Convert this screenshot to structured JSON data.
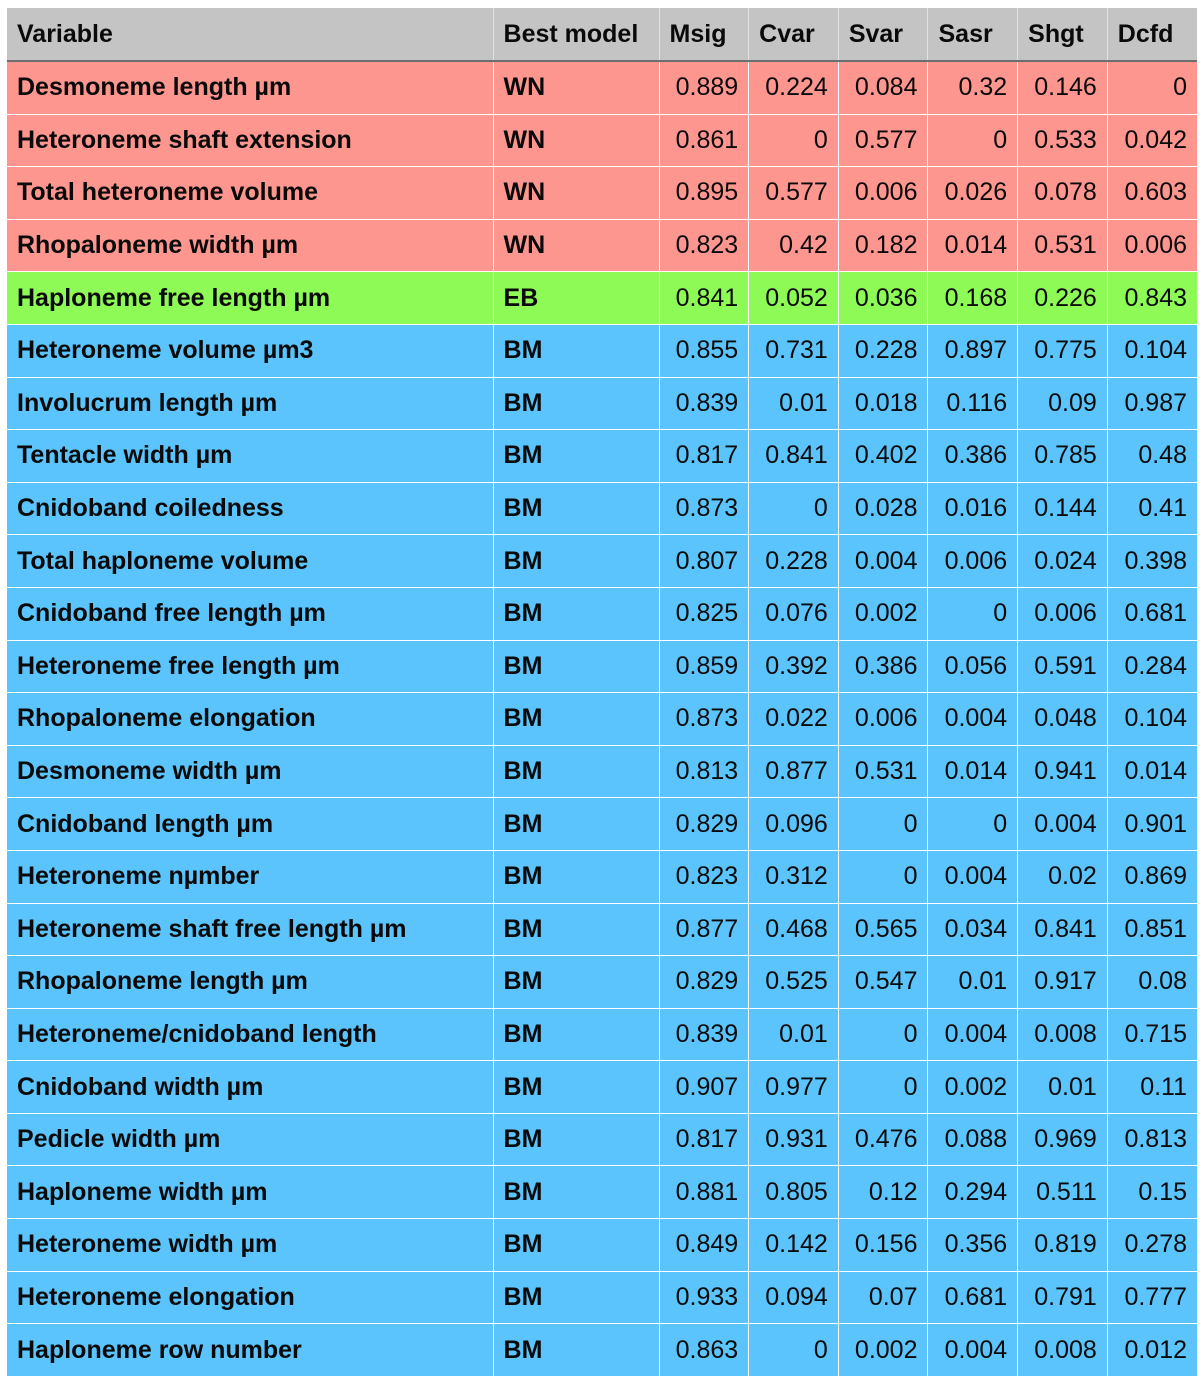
{
  "table": {
    "headers": [
      "Variable",
      "Best model",
      "Msig",
      "Cvar",
      "Svar",
      "Sasr",
      "Shgt",
      "Dcfd"
    ],
    "group_colors": {
      "WN": "#fe9690",
      "EB": "#8efa56",
      "BM": "#5bc4fc"
    },
    "rows": [
      {
        "variable": "Desmoneme length µm",
        "model": "WN",
        "values": [
          "0.889",
          "0.224",
          "0.084",
          "0.32",
          "0.146",
          "0"
        ]
      },
      {
        "variable": "Heteroneme shaft extension",
        "model": "WN",
        "values": [
          "0.861",
          "0",
          "0.577",
          "0",
          "0.533",
          "0.042"
        ]
      },
      {
        "variable": "Total heteroneme volume",
        "model": "WN",
        "values": [
          "0.895",
          "0.577",
          "0.006",
          "0.026",
          "0.078",
          "0.603"
        ]
      },
      {
        "variable": "Rhopaloneme width µm",
        "model": "WN",
        "values": [
          "0.823",
          "0.42",
          "0.182",
          "0.014",
          "0.531",
          "0.006"
        ]
      },
      {
        "variable": "Haploneme free length µm",
        "model": "EB",
        "values": [
          "0.841",
          "0.052",
          "0.036",
          "0.168",
          "0.226",
          "0.843"
        ]
      },
      {
        "variable": "Heteroneme volume µm3",
        "model": "BM",
        "values": [
          "0.855",
          "0.731",
          "0.228",
          "0.897",
          "0.775",
          "0.104"
        ]
      },
      {
        "variable": "Involucrum length µm",
        "model": "BM",
        "values": [
          "0.839",
          "0.01",
          "0.018",
          "0.116",
          "0.09",
          "0.987"
        ]
      },
      {
        "variable": "Tentacle width µm",
        "model": "BM",
        "values": [
          "0.817",
          "0.841",
          "0.402",
          "0.386",
          "0.785",
          "0.48"
        ]
      },
      {
        "variable": "Cnidoband coiledness",
        "model": "BM",
        "values": [
          "0.873",
          "0",
          "0.028",
          "0.016",
          "0.144",
          "0.41"
        ]
      },
      {
        "variable": "Total haploneme volume",
        "model": "BM",
        "values": [
          "0.807",
          "0.228",
          "0.004",
          "0.006",
          "0.024",
          "0.398"
        ]
      },
      {
        "variable": "Cnidoband free length µm",
        "model": "BM",
        "values": [
          "0.825",
          "0.076",
          "0.002",
          "0",
          "0.006",
          "0.681"
        ]
      },
      {
        "variable": "Heteroneme free length µm",
        "model": "BM",
        "values": [
          "0.859",
          "0.392",
          "0.386",
          "0.056",
          "0.591",
          "0.284"
        ]
      },
      {
        "variable": "Rhopaloneme elongation",
        "model": "BM",
        "values": [
          "0.873",
          "0.022",
          "0.006",
          "0.004",
          "0.048",
          "0.104"
        ]
      },
      {
        "variable": "Desmoneme width µm",
        "model": "BM",
        "values": [
          "0.813",
          "0.877",
          "0.531",
          "0.014",
          "0.941",
          "0.014"
        ]
      },
      {
        "variable": "Cnidoband length µm",
        "model": "BM",
        "values": [
          "0.829",
          "0.096",
          "0",
          "0",
          "0.004",
          "0.901"
        ]
      },
      {
        "variable": "Heteroneme nµmber",
        "model": "BM",
        "values": [
          "0.823",
          "0.312",
          "0",
          "0.004",
          "0.02",
          "0.869"
        ]
      },
      {
        "variable": "Heteroneme shaft free length µm",
        "model": "BM",
        "values": [
          "0.877",
          "0.468",
          "0.565",
          "0.034",
          "0.841",
          "0.851"
        ]
      },
      {
        "variable": "Rhopaloneme length µm",
        "model": "BM",
        "values": [
          "0.829",
          "0.525",
          "0.547",
          "0.01",
          "0.917",
          "0.08"
        ]
      },
      {
        "variable": "Heteroneme/cnidoband length",
        "model": "BM",
        "values": [
          "0.839",
          "0.01",
          "0",
          "0.004",
          "0.008",
          "0.715"
        ]
      },
      {
        "variable": "Cnidoband width µm",
        "model": "BM",
        "values": [
          "0.907",
          "0.977",
          "0",
          "0.002",
          "0.01",
          "0.11"
        ]
      },
      {
        "variable": "Pedicle width µm",
        "model": "BM",
        "values": [
          "0.817",
          "0.931",
          "0.476",
          "0.088",
          "0.969",
          "0.813"
        ]
      },
      {
        "variable": "Haploneme width µm",
        "model": "BM",
        "values": [
          "0.881",
          "0.805",
          "0.12",
          "0.294",
          "0.511",
          "0.15"
        ]
      },
      {
        "variable": "Heteroneme width µm",
        "model": "BM",
        "values": [
          "0.849",
          "0.142",
          "0.156",
          "0.356",
          "0.819",
          "0.278"
        ]
      },
      {
        "variable": "Heteroneme elongation",
        "model": "BM",
        "values": [
          "0.933",
          "0.094",
          "0.07",
          "0.681",
          "0.791",
          "0.777"
        ]
      },
      {
        "variable": "Haploneme row number",
        "model": "BM",
        "values": [
          "0.863",
          "0",
          "0.002",
          "0.004",
          "0.008",
          "0.012"
        ]
      }
    ]
  }
}
